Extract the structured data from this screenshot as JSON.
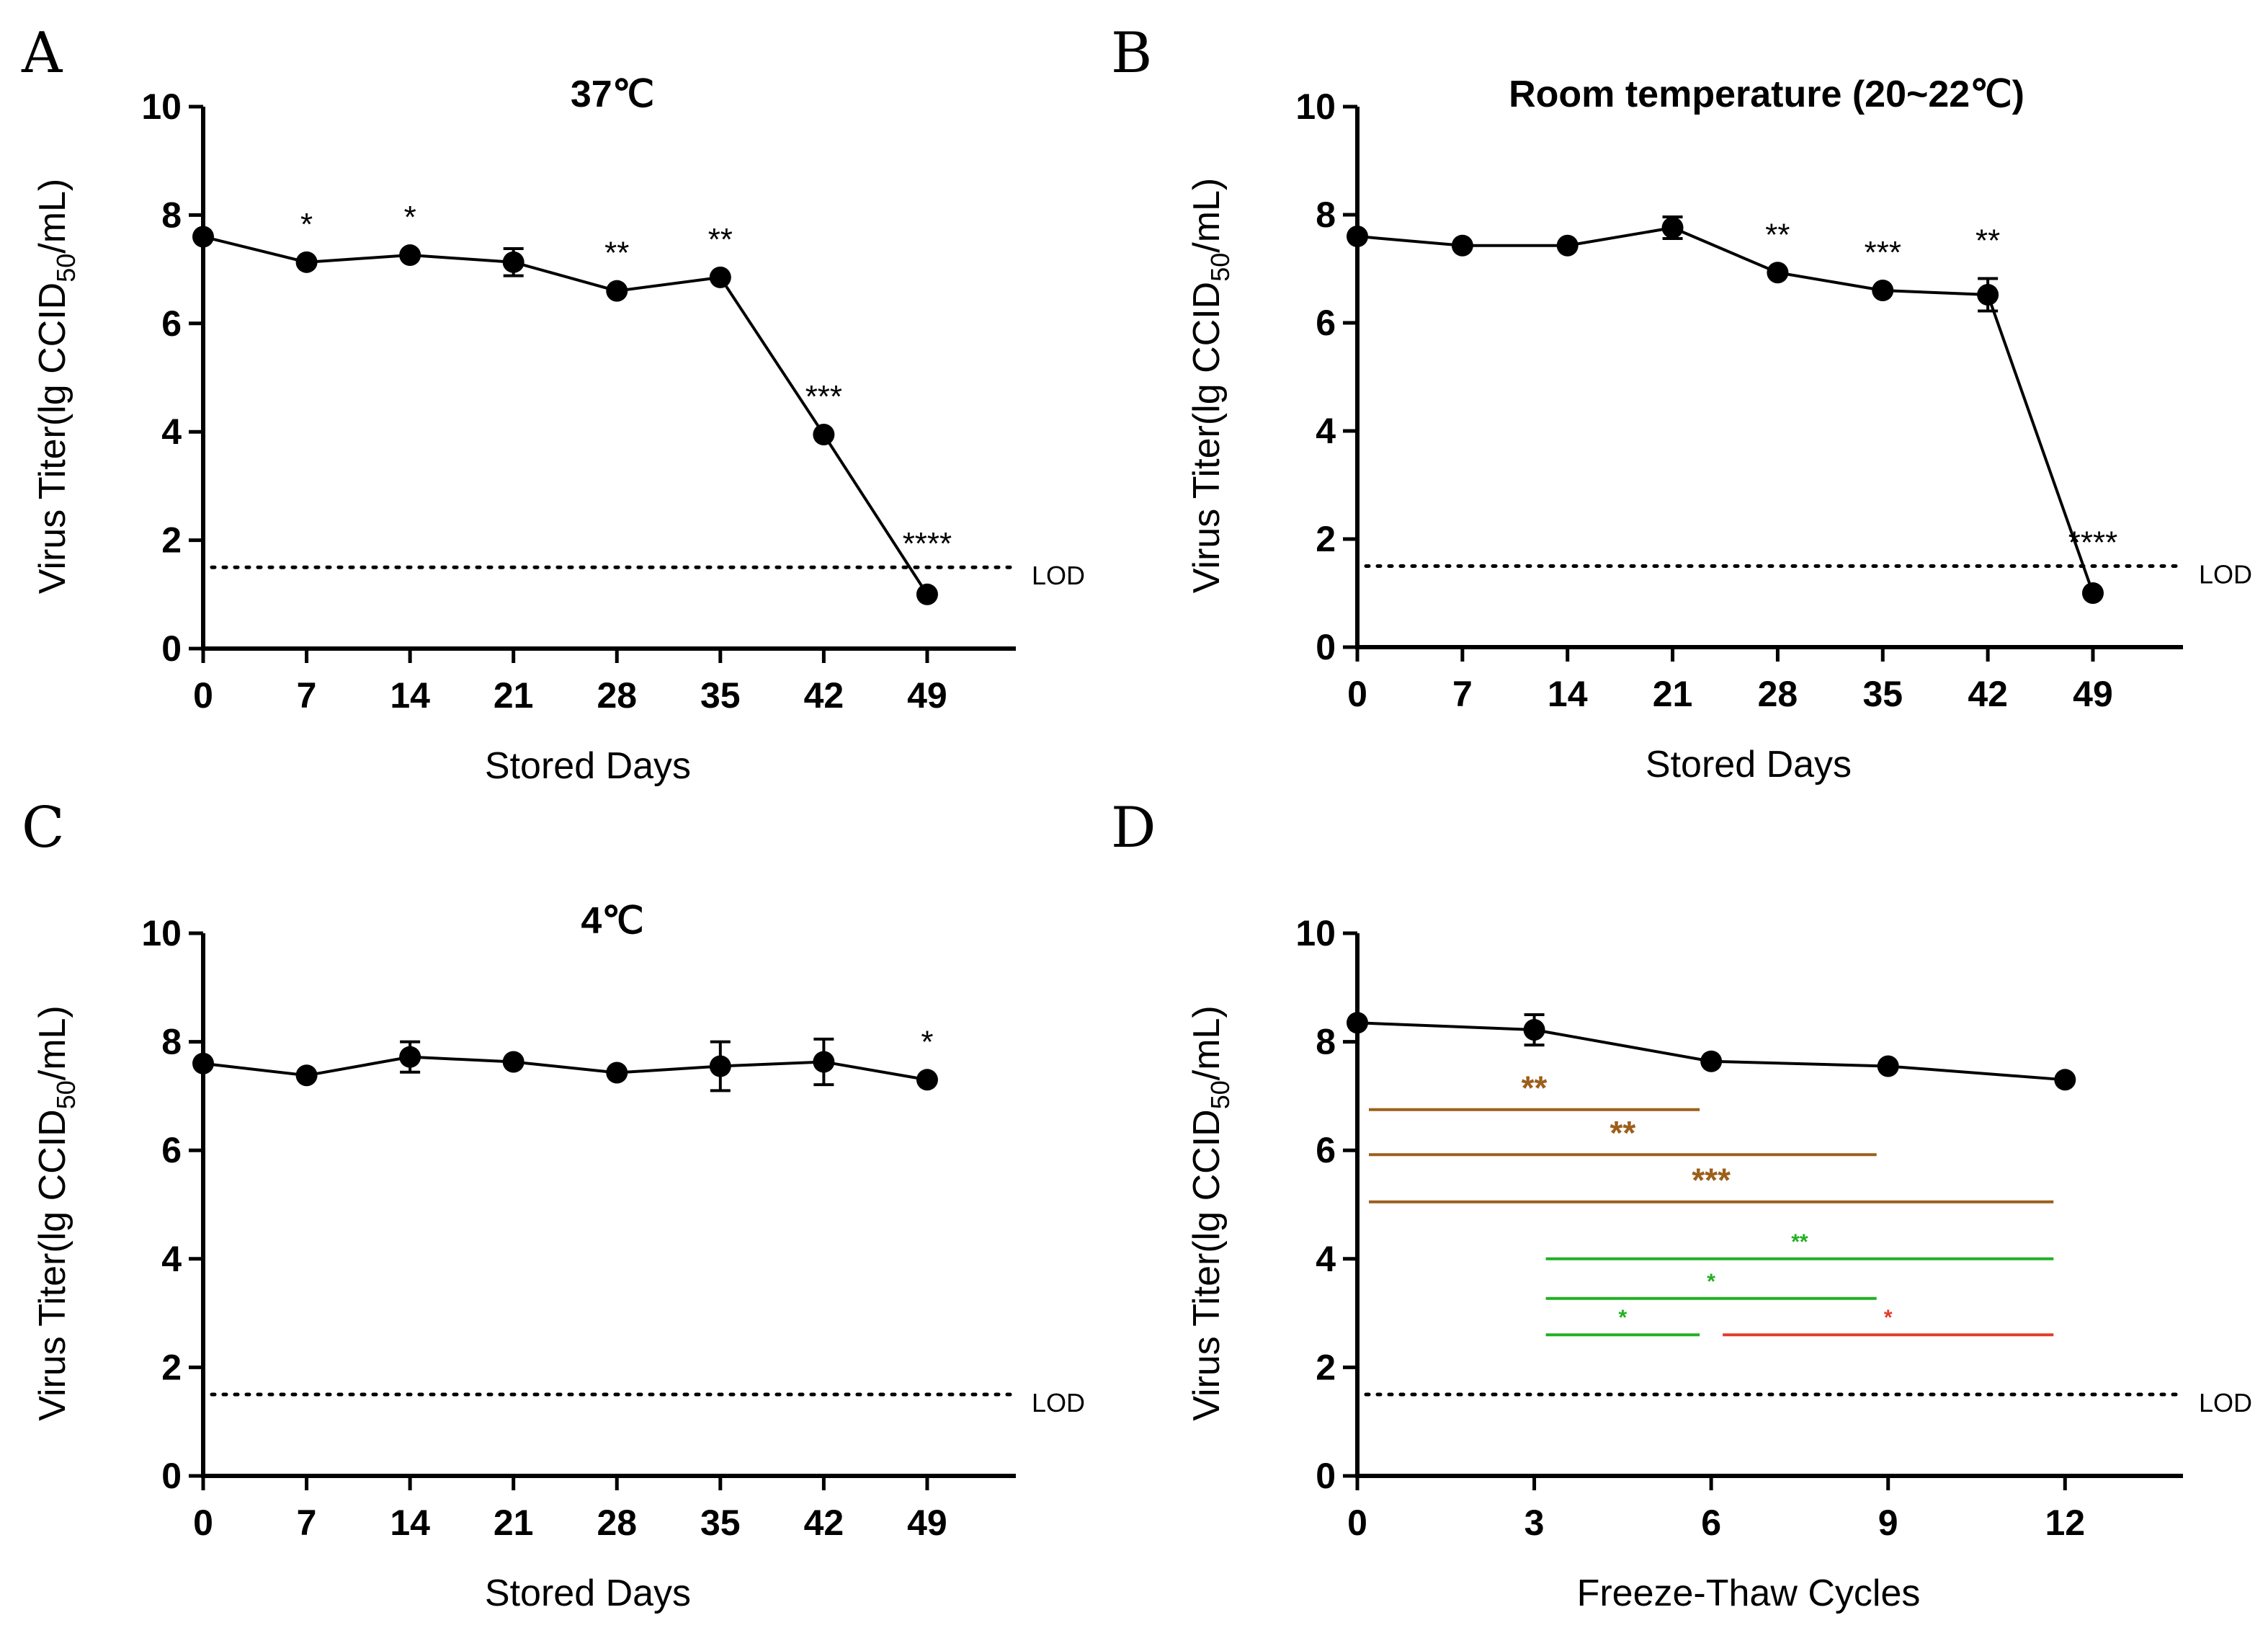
{
  "figure": {
    "lod_value": 1.5,
    "lod_text": "LOD"
  },
  "chart_data": [
    {
      "panel": "A",
      "type": "line",
      "title": "37℃",
      "xlabel": "Stored Days",
      "ylabel": {
        "main": "Virus Titer(lg CCID",
        "sub": "50",
        "tail": "/mL)"
      },
      "x": [
        0,
        7,
        14,
        21,
        28,
        35,
        42,
        49
      ],
      "y": [
        7.6,
        7.13,
        7.26,
        7.13,
        6.6,
        6.85,
        3.95,
        1.0
      ],
      "err": [
        0,
        0,
        0,
        0.25,
        0,
        0,
        0,
        0
      ],
      "sig": [
        "",
        "*",
        "*",
        "",
        "**",
        "**",
        "***",
        "****"
      ],
      "xticks": [
        0,
        7,
        14,
        21,
        28,
        35,
        42,
        49
      ],
      "xlim": [
        0,
        55
      ],
      "yticks": [
        0,
        2,
        4,
        6,
        8,
        10
      ],
      "ylim": [
        0,
        10
      ],
      "lod": 1.5
    },
    {
      "panel": "B",
      "type": "line",
      "title": "Room temperature (20~22℃)",
      "xlabel": "Stored Days",
      "ylabel": {
        "main": "Virus Titer(lg CCID",
        "sub": "50",
        "tail": "/mL)"
      },
      "x": [
        0,
        7,
        14,
        21,
        28,
        35,
        42,
        49
      ],
      "y": [
        7.6,
        7.43,
        7.43,
        7.76,
        6.93,
        6.6,
        6.52,
        1.0
      ],
      "err": [
        0,
        0,
        0,
        0.2,
        0,
        0,
        0.3,
        0
      ],
      "sig": [
        "",
        "",
        "",
        "",
        "**",
        "***",
        "**",
        "****"
      ],
      "xticks": [
        0,
        7,
        14,
        21,
        28,
        35,
        42,
        49
      ],
      "xlim": [
        0,
        55
      ],
      "yticks": [
        0,
        2,
        4,
        6,
        8,
        10
      ],
      "ylim": [
        0,
        10
      ],
      "lod": 1.5
    },
    {
      "panel": "C",
      "type": "line",
      "title": "4℃",
      "xlabel": "Stored Days",
      "ylabel": {
        "main": "Virus Titer(lg CCID",
        "sub": "50",
        "tail": "/mL)"
      },
      "x": [
        0,
        7,
        14,
        21,
        28,
        35,
        42,
        49
      ],
      "y": [
        7.6,
        7.38,
        7.72,
        7.63,
        7.43,
        7.55,
        7.63,
        7.3
      ],
      "err": [
        0,
        0,
        0.28,
        0,
        0,
        0.45,
        0.42,
        0
      ],
      "sig": [
        "",
        "",
        "",
        "",
        "",
        "",
        "",
        "*"
      ],
      "xticks": [
        0,
        7,
        14,
        21,
        28,
        35,
        42,
        49
      ],
      "xlim": [
        0,
        55
      ],
      "yticks": [
        0,
        2,
        4,
        6,
        8,
        10
      ],
      "ylim": [
        0,
        10
      ],
      "lod": 1.5
    },
    {
      "panel": "D",
      "type": "line",
      "title": "",
      "xlabel": "Freeze-Thaw Cycles",
      "ylabel": {
        "main": "Virus Titer(lg CCID",
        "sub": "50",
        "tail": "/mL)"
      },
      "x": [
        0,
        3,
        6,
        9,
        12
      ],
      "y": [
        8.35,
        8.22,
        7.64,
        7.55,
        7.3
      ],
      "err": [
        0,
        0.28,
        0,
        0,
        0
      ],
      "sig": [
        "",
        "",
        "",
        "",
        ""
      ],
      "xticks": [
        0,
        3,
        6,
        9,
        12
      ],
      "xlim": [
        0,
        14
      ],
      "yticks": [
        0,
        2,
        4,
        6,
        8,
        10
      ],
      "ylim": [
        0,
        10
      ],
      "lod": 1.5,
      "brackets": [
        {
          "x1": 0,
          "x2": 6,
          "y": 6.75,
          "label": "**",
          "color": "#9c5f1b",
          "size": "large"
        },
        {
          "x1": 0,
          "x2": 9,
          "y": 5.92,
          "label": "**",
          "color": "#9c5f1b",
          "size": "large"
        },
        {
          "x1": 0,
          "x2": 12,
          "y": 5.05,
          "label": "***",
          "color": "#9c5f1b",
          "size": "large"
        },
        {
          "x1": 3,
          "x2": 12,
          "y": 4.0,
          "label": "**",
          "color": "#22b022",
          "size": "small"
        },
        {
          "x1": 3,
          "x2": 9,
          "y": 3.27,
          "label": "*",
          "color": "#22b022",
          "size": "small"
        },
        {
          "x1": 3,
          "x2": 6,
          "y": 2.6,
          "label": "*",
          "color": "#22b022",
          "size": "small"
        },
        {
          "x1": 6,
          "x2": 12,
          "y": 2.6,
          "label": "*",
          "color": "#e23c2c",
          "size": "small"
        }
      ]
    }
  ]
}
